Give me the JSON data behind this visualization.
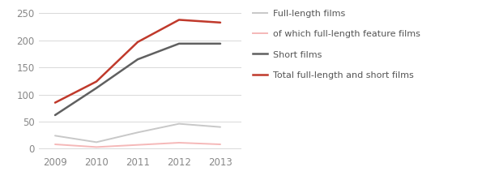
{
  "years": [
    2009,
    2010,
    2011,
    2012,
    2013
  ],
  "series": [
    {
      "label": "Full-length films",
      "values": [
        24,
        12,
        30,
        46,
        40
      ],
      "color": "#c8c8c8",
      "linewidth": 1.4,
      "zorder": 2
    },
    {
      "label": "of which full-length feature films",
      "values": [
        8,
        3,
        7,
        11,
        8
      ],
      "color": "#f5b8b8",
      "linewidth": 1.4,
      "zorder": 2
    },
    {
      "label": "Short films",
      "values": [
        62,
        112,
        165,
        194,
        194
      ],
      "color": "#606060",
      "linewidth": 1.8,
      "zorder": 3
    },
    {
      "label": "Total full-length and short films",
      "values": [
        85,
        124,
        197,
        238,
        233
      ],
      "color": "#c0392b",
      "linewidth": 1.8,
      "zorder": 4
    }
  ],
  "yticks": [
    0,
    50,
    100,
    150,
    200,
    250
  ],
  "ylim": [
    -8,
    258
  ],
  "xlim": [
    2008.6,
    2013.5
  ],
  "grid_color": "#d8d8d8",
  "background_color": "#ffffff",
  "legend_fontsize": 8.0,
  "tick_fontsize": 8.5,
  "tick_color": "#888888"
}
